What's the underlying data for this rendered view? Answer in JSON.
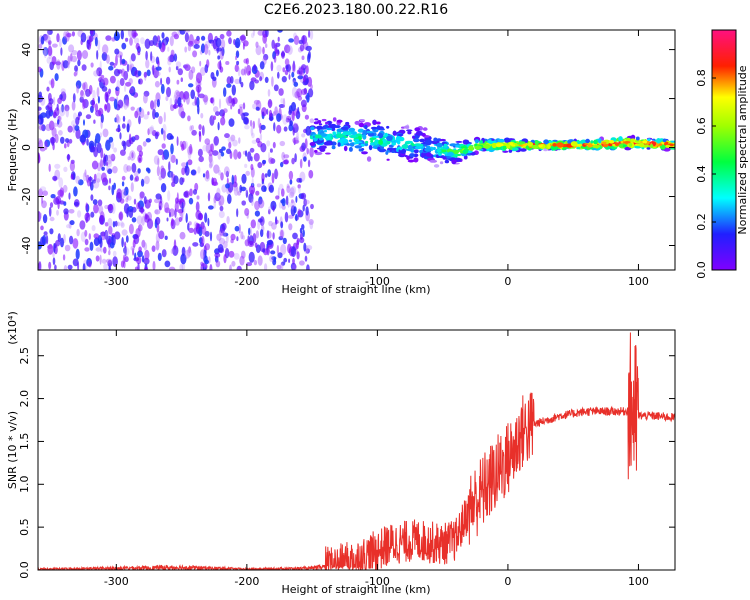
{
  "title": "C2E6.2023.180.00.22.R16",
  "chart_data": [
    {
      "type": "heatmap",
      "xlabel": "Height of straight line (km)",
      "ylabel": "Frequency (Hz)",
      "xlim": [
        -360,
        128
      ],
      "ylim": [
        -50,
        48
      ],
      "xticks": [
        -300,
        -200,
        -100,
        0,
        100
      ],
      "yticks": [
        40,
        20,
        0,
        -20,
        -40
      ],
      "colorbar": {
        "label": "Normalized spectral amplitude",
        "range": [
          0.0,
          1.0
        ],
        "ticks": [
          "0.0",
          "0.2",
          "0.4",
          "0.6",
          "0.8"
        ],
        "colormap": "rainbow (violet-blue-cyan-green-yellow-red-magenta)"
      },
      "noise_region_x": [
        -360,
        -150
      ],
      "signal_band": [
        {
          "x": -150,
          "f_center": 5,
          "f_halfwidth": 8,
          "amplitude": 0.35
        },
        {
          "x": -100,
          "f_center": 3,
          "f_halfwidth": 9,
          "amplitude": 0.4
        },
        {
          "x": -60,
          "f_center": 0,
          "f_halfwidth": 8,
          "amplitude": 0.3
        },
        {
          "x": -40,
          "f_center": -2,
          "f_halfwidth": 5,
          "amplitude": 0.5
        },
        {
          "x": -20,
          "f_center": 1,
          "f_halfwidth": 3,
          "amplitude": 0.6
        },
        {
          "x": 0,
          "f_center": 1,
          "f_halfwidth": 3,
          "amplitude": 0.7
        },
        {
          "x": 20,
          "f_center": 1,
          "f_halfwidth": 2,
          "amplitude": 0.85
        },
        {
          "x": 60,
          "f_center": 1,
          "f_halfwidth": 2,
          "amplitude": 0.9
        },
        {
          "x": 90,
          "f_center": 2,
          "f_halfwidth": 3,
          "amplitude": 0.9
        },
        {
          "x": 128,
          "f_center": 1,
          "f_halfwidth": 2,
          "amplitude": 0.9
        }
      ]
    },
    {
      "type": "line",
      "xlabel": "Height of straight line (km)",
      "ylabel": "SNR (10 * v/v)",
      "multiplier": "(x10⁴)",
      "xlim": [
        -360,
        128
      ],
      "ylim": [
        0,
        2.8
      ],
      "xticks": [
        -300,
        -200,
        -100,
        0,
        100
      ],
      "yticks": [
        "0.0",
        "0.5",
        "1.0",
        "1.5",
        "2.0",
        "2.5"
      ],
      "ytick_values": [
        0.0,
        0.5,
        1.0,
        1.5,
        2.0,
        2.5
      ],
      "color": "#e8302a",
      "series": [
        {
          "x": [
            -360,
            -300,
            -250,
            -200,
            -150,
            -130,
            -110,
            -90,
            -70,
            -50,
            -40,
            -30,
            -20,
            -10,
            0,
            5,
            10,
            20,
            30,
            40,
            60,
            80,
            90,
            95,
            98,
            100,
            110,
            128
          ],
          "values": [
            0.01,
            0.02,
            0.03,
            0.01,
            0.02,
            0.05,
            0.15,
            0.3,
            0.35,
            0.3,
            0.35,
            0.7,
            0.9,
            1.1,
            1.3,
            1.4,
            1.6,
            1.7,
            1.75,
            1.8,
            1.85,
            1.85,
            1.85,
            1.9,
            1.8,
            1.8,
            1.8,
            1.78
          ]
        }
      ]
    }
  ]
}
